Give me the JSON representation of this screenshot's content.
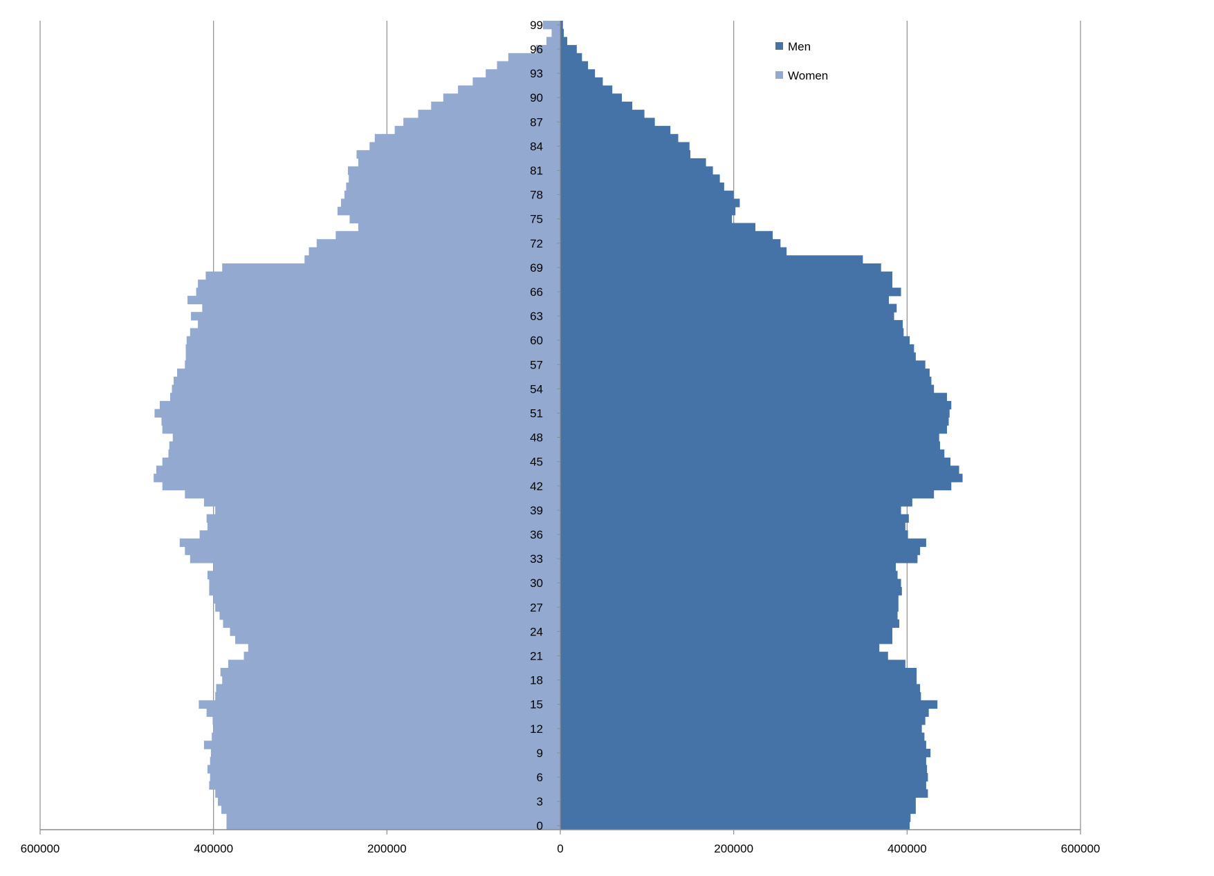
{
  "chart_data": {
    "type": "bar",
    "orientation": "horizontal",
    "subtype": "population-pyramid",
    "title": "",
    "xlabel": "",
    "ylabel": "",
    "x_ticks": [
      "600000",
      "400000",
      "200000",
      "0",
      "200000",
      "400000",
      "600000"
    ],
    "x_tick_values": [
      -600000,
      -400000,
      -200000,
      0,
      200000,
      400000,
      600000
    ],
    "xlim": [
      -600000,
      600000
    ],
    "age_tick_labels": [
      "0",
      "3",
      "6",
      "9",
      "12",
      "15",
      "18",
      "21",
      "24",
      "27",
      "30",
      "33",
      "36",
      "39",
      "42",
      "45",
      "48",
      "51",
      "54",
      "57",
      "60",
      "63",
      "66",
      "69",
      "72",
      "75",
      "78",
      "81",
      "84",
      "87",
      "90",
      "93",
      "96",
      "99"
    ],
    "grid": "vertical",
    "legend_position": "top-right",
    "categories": [
      0,
      1,
      2,
      3,
      4,
      5,
      6,
      7,
      8,
      9,
      10,
      11,
      12,
      13,
      14,
      15,
      16,
      17,
      18,
      19,
      20,
      21,
      22,
      23,
      24,
      25,
      26,
      27,
      28,
      29,
      30,
      31,
      32,
      33,
      34,
      35,
      36,
      37,
      38,
      39,
      40,
      41,
      42,
      43,
      44,
      45,
      46,
      47,
      48,
      49,
      50,
      51,
      52,
      53,
      54,
      55,
      56,
      57,
      58,
      59,
      60,
      61,
      62,
      63,
      64,
      65,
      66,
      67,
      68,
      69,
      70,
      71,
      72,
      73,
      74,
      75,
      76,
      77,
      78,
      79,
      80,
      81,
      82,
      83,
      84,
      85,
      86,
      87,
      88,
      89,
      90,
      91,
      92,
      93,
      94,
      95,
      96,
      97,
      98,
      99
    ],
    "series": [
      {
        "name": "Men",
        "color": "#4572a7",
        "values": [
          403000,
          404000,
          410000,
          410000,
          424000,
          422000,
          424000,
          423000,
          422000,
          427000,
          422000,
          420000,
          417000,
          421000,
          425000,
          435000,
          416000,
          415000,
          411000,
          411000,
          398000,
          378000,
          368000,
          383000,
          383000,
          391000,
          389000,
          390000,
          390000,
          394000,
          393000,
          389000,
          387000,
          412000,
          415000,
          422000,
          401000,
          398000,
          402000,
          393000,
          406000,
          431000,
          451000,
          464000,
          460000,
          450000,
          443000,
          438000,
          437000,
          446000,
          448000,
          449000,
          451000,
          446000,
          431000,
          428000,
          426000,
          421000,
          410000,
          408000,
          403000,
          396000,
          395000,
          385000,
          388000,
          379000,
          393000,
          383000,
          383000,
          370000,
          349000,
          261000,
          254000,
          245000,
          225000,
          198000,
          202000,
          207000,
          200000,
          189000,
          184000,
          176000,
          168000,
          150000,
          149000,
          136000,
          127000,
          109000,
          97000,
          83000,
          71000,
          60000,
          49000,
          40000,
          32000,
          25000,
          19000,
          8000,
          4000,
          3000
        ]
      },
      {
        "name": "Women",
        "color": "#93a9cf",
        "values": [
          385000,
          385000,
          391000,
          395000,
          398000,
          405000,
          404000,
          407000,
          404000,
          403000,
          411000,
          402000,
          400000,
          401000,
          408000,
          417000,
          398000,
          397000,
          390000,
          392000,
          383000,
          365000,
          360000,
          375000,
          381000,
          389000,
          393000,
          398000,
          400000,
          405000,
          405000,
          407000,
          400000,
          427000,
          433000,
          439000,
          416000,
          407000,
          408000,
          398000,
          411000,
          433000,
          459000,
          469000,
          466000,
          459000,
          452000,
          451000,
          447000,
          459000,
          460000,
          468000,
          462000,
          450000,
          448000,
          446000,
          442000,
          433000,
          432000,
          432000,
          431000,
          427000,
          418000,
          426000,
          413000,
          430000,
          420000,
          418000,
          409000,
          390000,
          295000,
          290000,
          281000,
          259000,
          233000,
          243000,
          257000,
          253000,
          249000,
          247000,
          244000,
          245000,
          233000,
          235000,
          220000,
          214000,
          191000,
          181000,
          164000,
          149000,
          135000,
          118000,
          101000,
          86000,
          73000,
          60000,
          28000,
          16000,
          10000,
          20000
        ]
      }
    ]
  }
}
